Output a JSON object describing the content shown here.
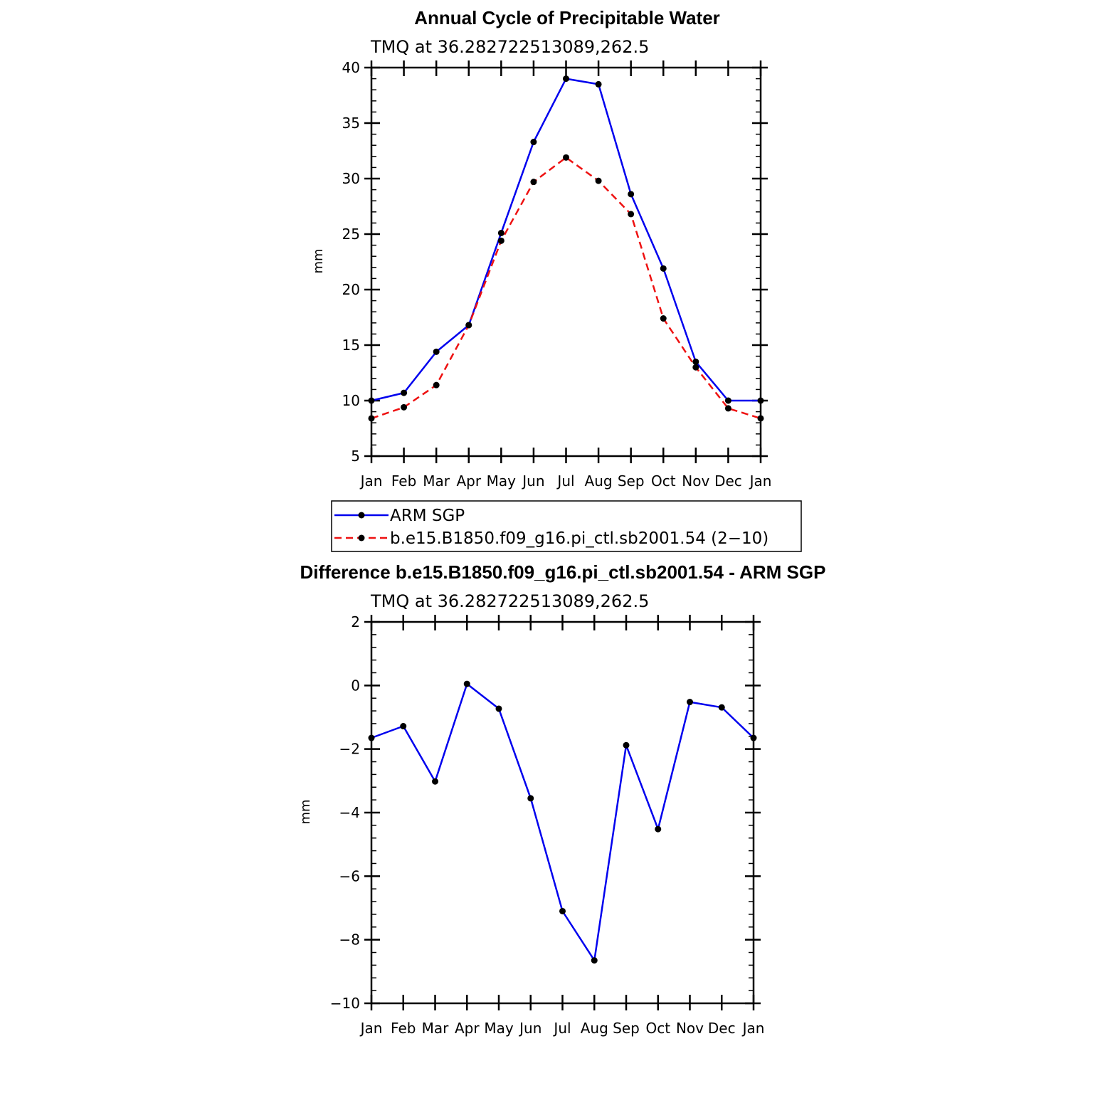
{
  "colors": {
    "obs": "#0000ee",
    "model": "#ee1111",
    "diff": "#0000ee",
    "marker": "#000000"
  },
  "chart_data": [
    {
      "type": "line",
      "title": "Annual Cycle of Precipitable Water",
      "subtitle": "TMQ  at  36.282722513089,262.5",
      "xlabel": "",
      "ylabel": "mm",
      "categories": [
        "Jan",
        "Feb",
        "Mar",
        "Apr",
        "May",
        "Jun",
        "Jul",
        "Aug",
        "Sep",
        "Oct",
        "Nov",
        "Dec",
        "Jan"
      ],
      "ylim": [
        5,
        40
      ],
      "yticks": [
        5,
        10,
        15,
        20,
        25,
        30,
        35,
        40
      ],
      "ytick_labels": [
        "5",
        "10",
        "15",
        "20",
        "25",
        "30",
        "35",
        "40"
      ],
      "series": [
        {
          "name": "ARM SGP",
          "style": "solid",
          "color": "#0000ee",
          "values": [
            10.0,
            10.7,
            14.4,
            16.8,
            25.1,
            33.3,
            39.0,
            38.5,
            28.6,
            21.9,
            13.5,
            10.0,
            10.0
          ]
        },
        {
          "name": "b.e15.B1850.f09_g16.pi_ctl.sb2001.54 (2−10)",
          "style": "dashed",
          "color": "#ee1111",
          "values": [
            8.4,
            9.4,
            11.4,
            16.8,
            24.4,
            29.7,
            31.9,
            29.8,
            26.8,
            17.4,
            13.0,
            9.3,
            8.4
          ]
        }
      ],
      "legend_position": "below"
    },
    {
      "type": "line",
      "title": "Difference b.e15.B1850.f09_g16.pi_ctl.sb2001.54 - ARM SGP",
      "subtitle": "TMQ  at  36.282722513089,262.5",
      "xlabel": "",
      "ylabel": "mm",
      "categories": [
        "Jan",
        "Feb",
        "Mar",
        "Apr",
        "May",
        "Jun",
        "Jul",
        "Aug",
        "Sep",
        "Oct",
        "Nov",
        "Dec",
        "Jan"
      ],
      "ylim": [
        -10,
        2
      ],
      "yticks": [
        -10,
        -8,
        -6,
        -4,
        -2,
        0,
        2
      ],
      "ytick_labels": [
        "−10",
        "−8",
        "−6",
        "−4",
        "−2",
        "0",
        "2"
      ],
      "series": [
        {
          "name": "Difference",
          "style": "solid",
          "color": "#0000ee",
          "values": [
            -1.65,
            -1.28,
            -3.02,
            0.05,
            -0.73,
            -3.55,
            -7.1,
            -8.65,
            -1.88,
            -4.52,
            -0.52,
            -0.69,
            -1.65
          ]
        }
      ]
    }
  ]
}
